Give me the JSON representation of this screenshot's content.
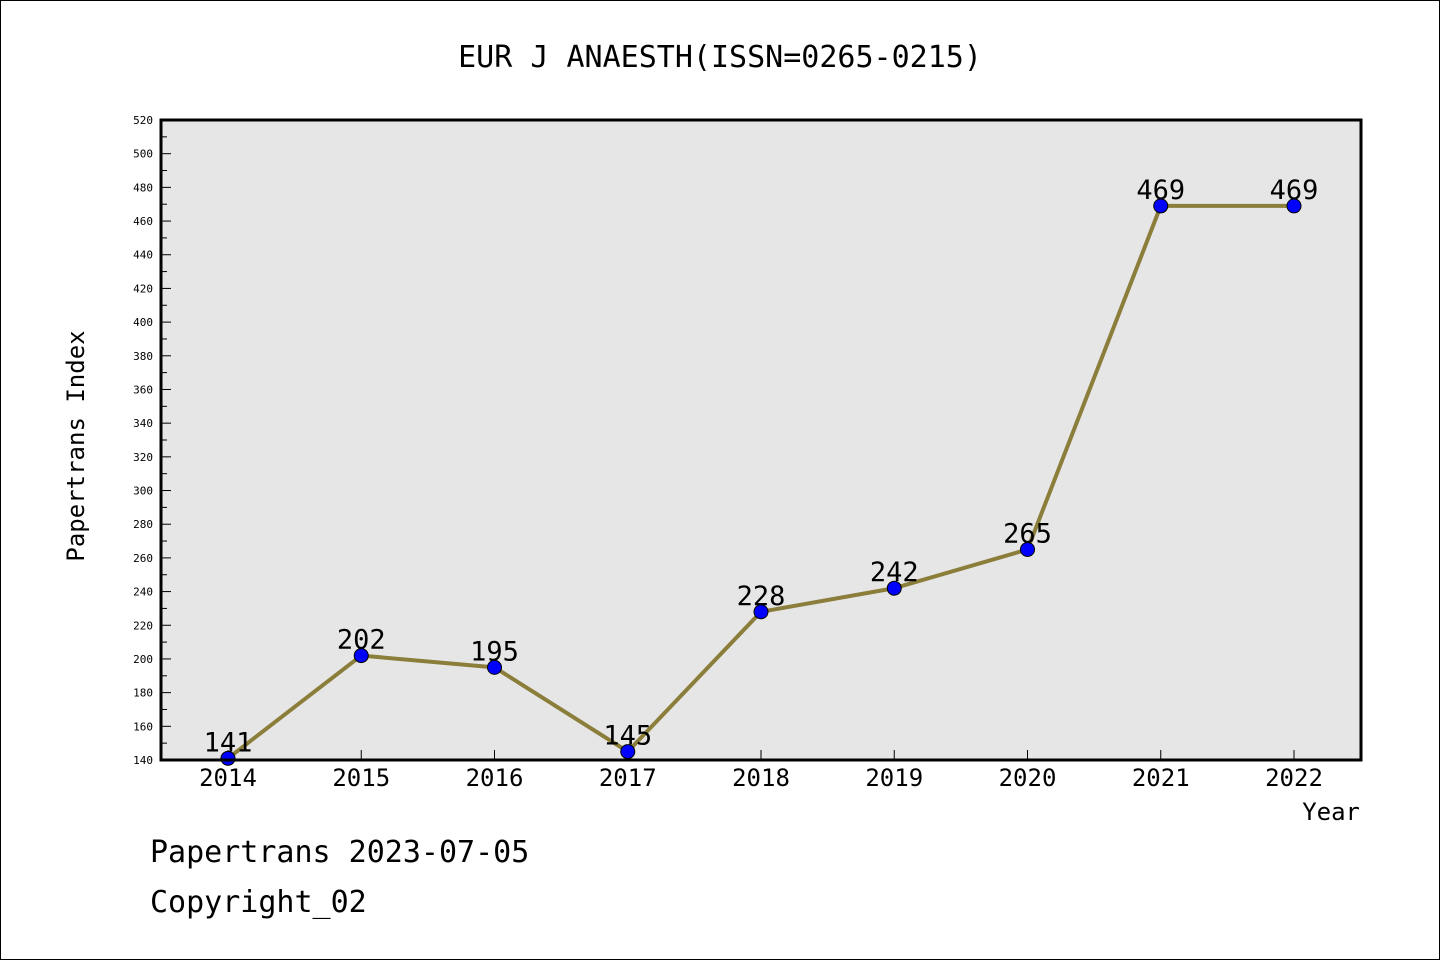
{
  "chart_data": {
    "type": "line",
    "title": "EUR J ANAESTH(ISSN=0265-0215)",
    "xlabel": "Year",
    "ylabel": "Papertrans Index",
    "categories": [
      "2014",
      "2015",
      "2016",
      "2017",
      "2018",
      "2019",
      "2020",
      "2021",
      "2022"
    ],
    "series": [
      {
        "values": [
          141,
          202,
          195,
          145,
          228,
          242,
          265,
          469,
          469
        ]
      }
    ],
    "data_labels": [
      "141",
      "202",
      "195",
      "145",
      "228",
      "242",
      "265",
      "469",
      "469"
    ],
    "ylim": [
      140,
      520
    ],
    "y_major_step": 20,
    "y_minor_step": 10,
    "grid": false,
    "line_color": "#8B7D3A",
    "marker_color": "#0000FF",
    "plot_background": "#E6E6E6"
  },
  "footer": {
    "line1": "Papertrans 2023-07-05",
    "line2": "Copyright_02"
  }
}
